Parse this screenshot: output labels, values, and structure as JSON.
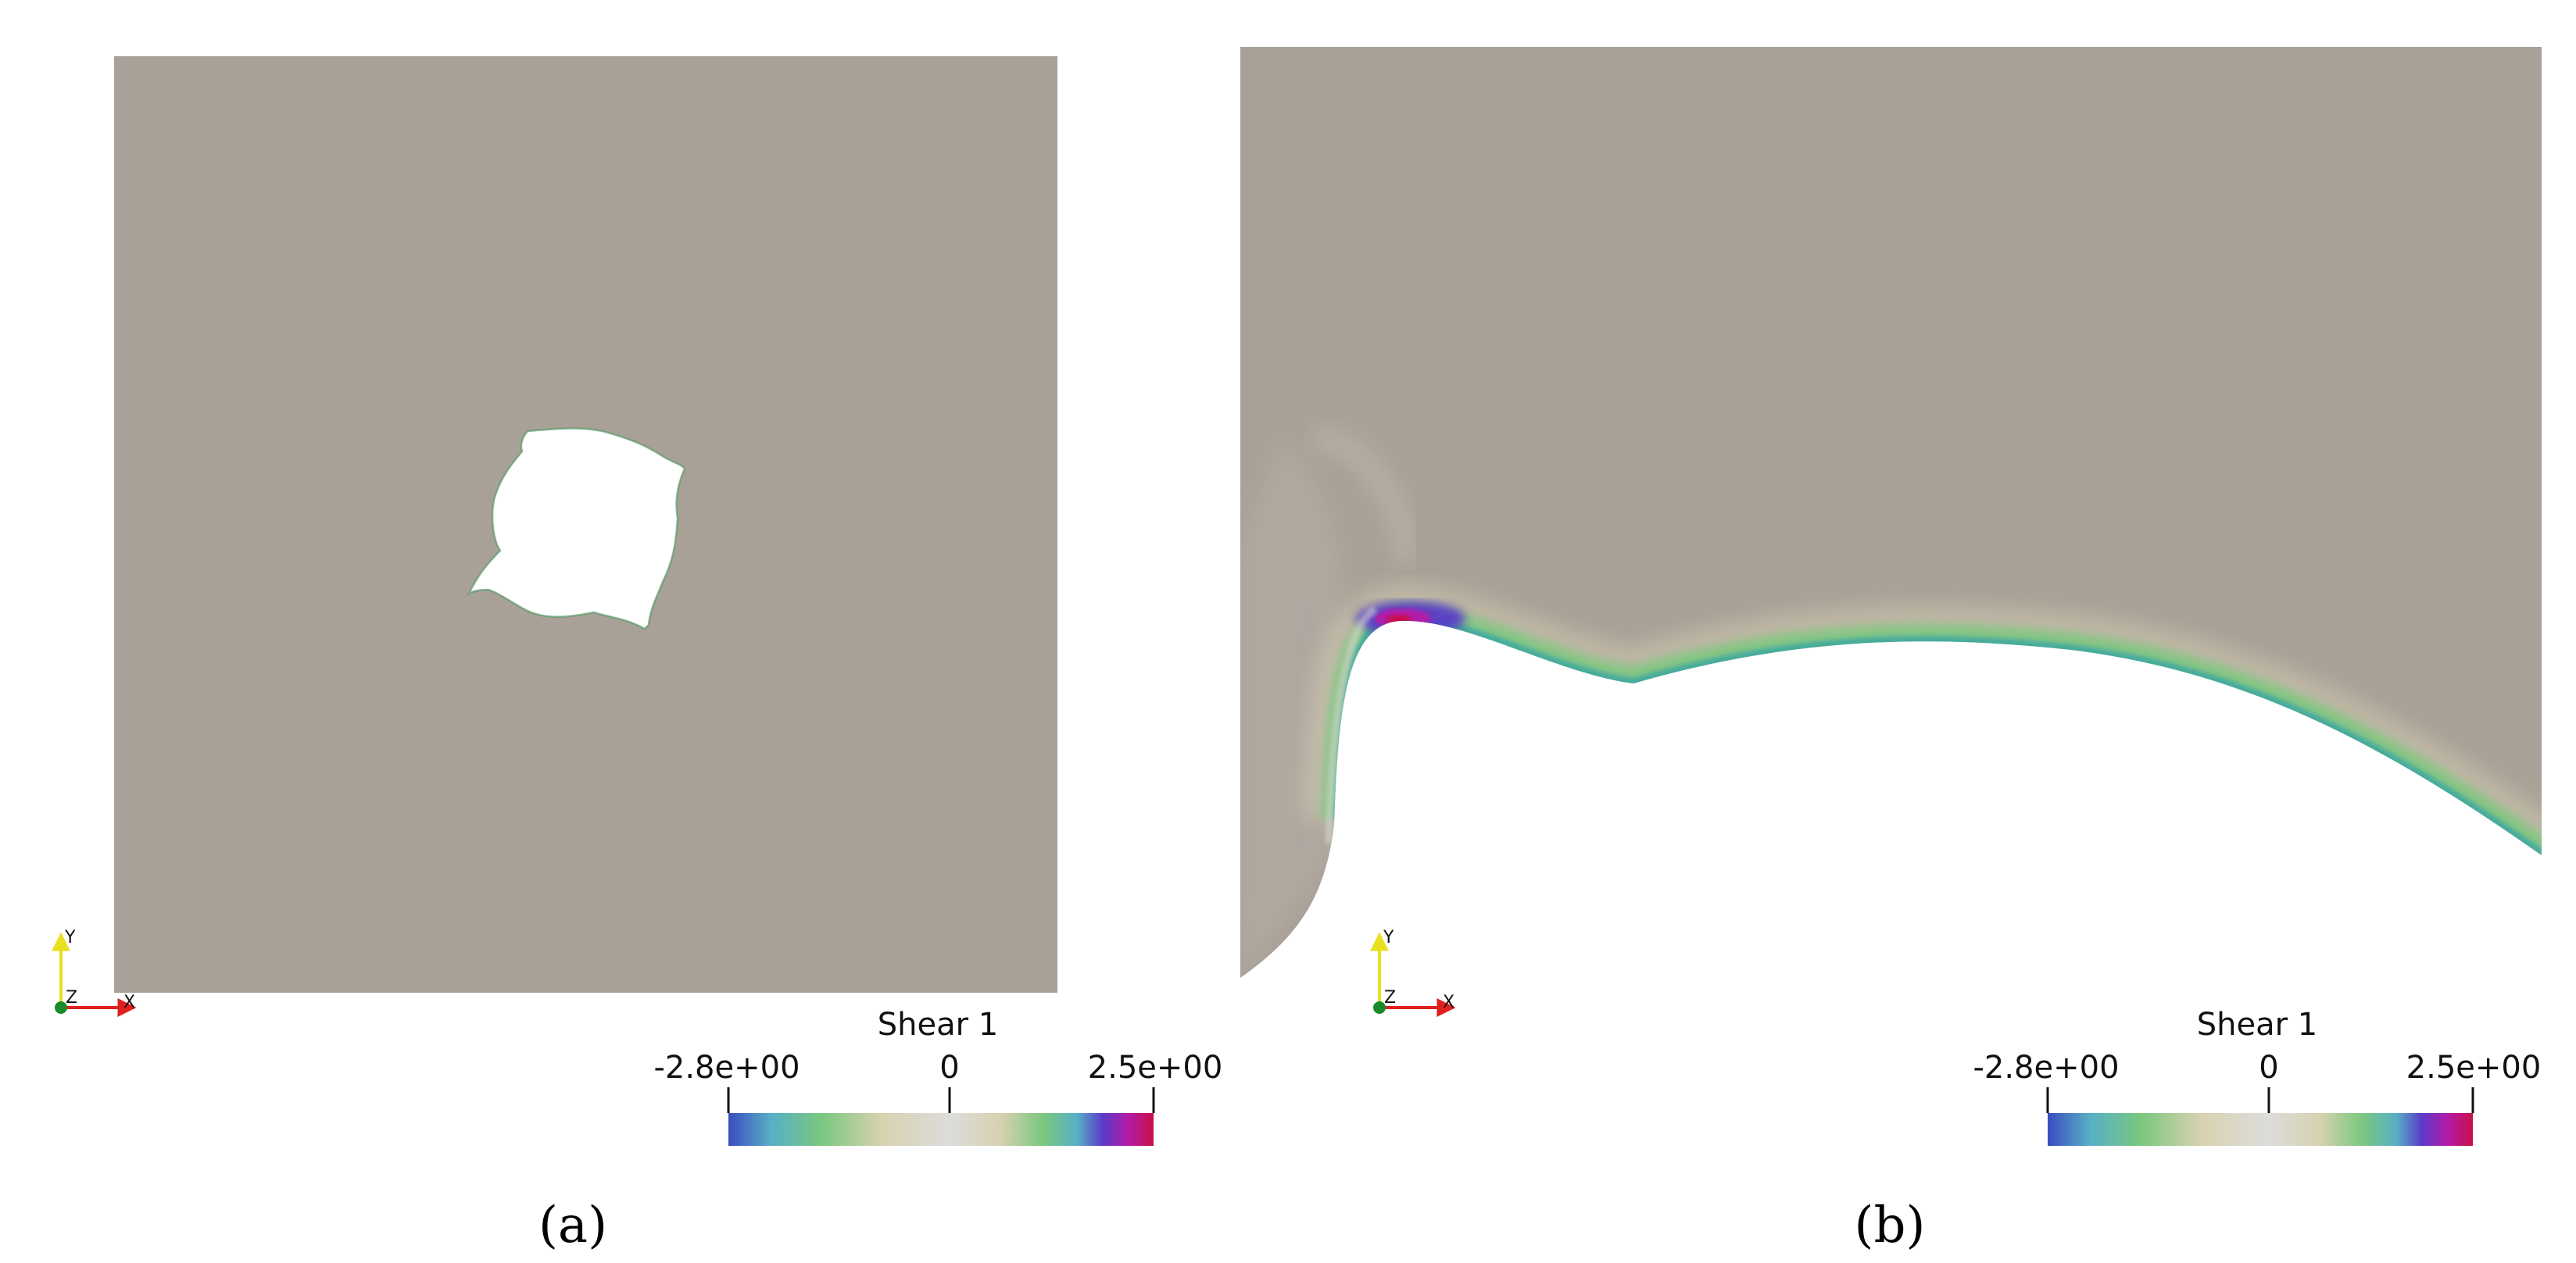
{
  "panels": [
    {
      "id": "a",
      "caption": "(a)",
      "colorbar": {
        "title": "Shear 1",
        "min_label": "-2.8e+00",
        "mid_label": "0",
        "max_label": "2.5e+00"
      },
      "axes_triad": {
        "y_label": "Y",
        "z_label": "Z",
        "x_label": "X"
      }
    },
    {
      "id": "b",
      "caption": "(b)",
      "colorbar": {
        "title": "Shear 1",
        "min_label": "-2.8e+00",
        "mid_label": "0",
        "max_label": "2.5e+00"
      },
      "axes_triad": {
        "y_label": "Y",
        "z_label": "Z",
        "x_label": "X"
      }
    }
  ],
  "colors": {
    "background_field": "#a9a197",
    "colormap": [
      "#3b4cc0",
      "#57b0c6",
      "#7ac77e",
      "#d8d2b0",
      "#dcdcdc",
      "#d8d2b0",
      "#7ac77e",
      "#57b0c6",
      "#5a3bc8",
      "#b21aa8",
      "#c8104a"
    ]
  }
}
